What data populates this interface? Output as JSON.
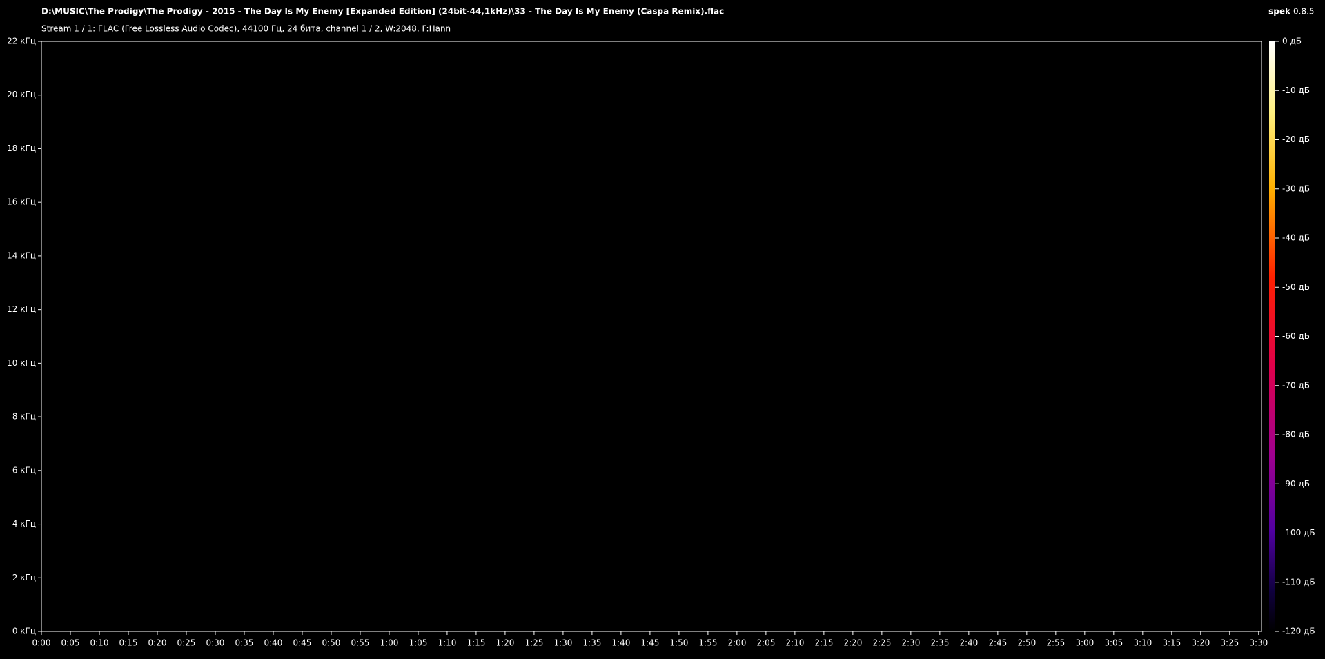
{
  "chart_data": {
    "type": "spectrogram",
    "title": "D:\\MUSIC\\The Prodigy\\The Prodigy - 2015 - The Day Is My Enemy [Expanded Edition] (24bit-44,1kHz)\\33 - The Day Is My Enemy (Caspa Remix).flac",
    "subtitle": "Stream 1 / 1: FLAC (Free Lossless Audio Codec), 44100 Гц, 24 бита, channel 1 / 2, W:2048, F:Hann",
    "app_name": "spek",
    "app_version": "0.8.5",
    "xlim": [
      0,
      210.5
    ],
    "xticks": [
      {
        "value": 0,
        "label": "0:00"
      },
      {
        "value": 5,
        "label": "0:05"
      },
      {
        "value": 10,
        "label": "0:10"
      },
      {
        "value": 15,
        "label": "0:15"
      },
      {
        "value": 20,
        "label": "0:20"
      },
      {
        "value": 25,
        "label": "0:25"
      },
      {
        "value": 30,
        "label": "0:30"
      },
      {
        "value": 35,
        "label": "0:35"
      },
      {
        "value": 40,
        "label": "0:40"
      },
      {
        "value": 45,
        "label": "0:45"
      },
      {
        "value": 50,
        "label": "0:50"
      },
      {
        "value": 55,
        "label": "0:55"
      },
      {
        "value": 60,
        "label": "1:00"
      },
      {
        "value": 65,
        "label": "1:05"
      },
      {
        "value": 70,
        "label": "1:10"
      },
      {
        "value": 75,
        "label": "1:15"
      },
      {
        "value": 80,
        "label": "1:20"
      },
      {
        "value": 85,
        "label": "1:25"
      },
      {
        "value": 90,
        "label": "1:30"
      },
      {
        "value": 95,
        "label": "1:35"
      },
      {
        "value": 100,
        "label": "1:40"
      },
      {
        "value": 105,
        "label": "1:45"
      },
      {
        "value": 110,
        "label": "1:50"
      },
      {
        "value": 115,
        "label": "1:55"
      },
      {
        "value": 120,
        "label": "2:00"
      },
      {
        "value": 125,
        "label": "2:05"
      },
      {
        "value": 130,
        "label": "2:10"
      },
      {
        "value": 135,
        "label": "2:15"
      },
      {
        "value": 140,
        "label": "2:20"
      },
      {
        "value": 145,
        "label": "2:25"
      },
      {
        "value": 150,
        "label": "2:30"
      },
      {
        "value": 155,
        "label": "2:35"
      },
      {
        "value": 160,
        "label": "2:40"
      },
      {
        "value": 165,
        "label": "2:45"
      },
      {
        "value": 170,
        "label": "2:50"
      },
      {
        "value": 175,
        "label": "2:55"
      },
      {
        "value": 180,
        "label": "3:00"
      },
      {
        "value": 185,
        "label": "3:05"
      },
      {
        "value": 190,
        "label": "3:10"
      },
      {
        "value": 195,
        "label": "3:15"
      },
      {
        "value": 200,
        "label": "3:20"
      },
      {
        "value": 205,
        "label": "3:25"
      },
      {
        "value": 210,
        "label": "3:30"
      }
    ],
    "ylim": [
      0,
      22
    ],
    "yticks": [
      {
        "value": 0,
        "label": "0 кГц"
      },
      {
        "value": 2,
        "label": "2 кГц"
      },
      {
        "value": 4,
        "label": "4 кГц"
      },
      {
        "value": 6,
        "label": "6 кГц"
      },
      {
        "value": 8,
        "label": "8 кГц"
      },
      {
        "value": 10,
        "label": "10 кГц"
      },
      {
        "value": 12,
        "label": "12 кГц"
      },
      {
        "value": 14,
        "label": "14 кГц"
      },
      {
        "value": 16,
        "label": "16 кГц"
      },
      {
        "value": 18,
        "label": "18 кГц"
      },
      {
        "value": 20,
        "label": "20 кГц"
      },
      {
        "value": 22,
        "label": "22 кГц"
      }
    ],
    "colorbar": {
      "lim": [
        -120,
        0
      ],
      "ticks": [
        {
          "value": 0,
          "label": "0 дБ"
        },
        {
          "value": -10,
          "label": "-10 дБ"
        },
        {
          "value": -20,
          "label": "-20 дБ"
        },
        {
          "value": -30,
          "label": "-30 дБ"
        },
        {
          "value": -40,
          "label": "-40 дБ"
        },
        {
          "value": -50,
          "label": "-50 дБ"
        },
        {
          "value": -60,
          "label": "-60 дБ"
        },
        {
          "value": -70,
          "label": "-70 дБ"
        },
        {
          "value": -80,
          "label": "-80 дБ"
        },
        {
          "value": -90,
          "label": "-90 дБ"
        },
        {
          "value": -100,
          "label": "-100 дБ"
        },
        {
          "value": -110,
          "label": "-110 дБ"
        },
        {
          "value": -120,
          "label": "-120 дБ"
        }
      ]
    }
  }
}
